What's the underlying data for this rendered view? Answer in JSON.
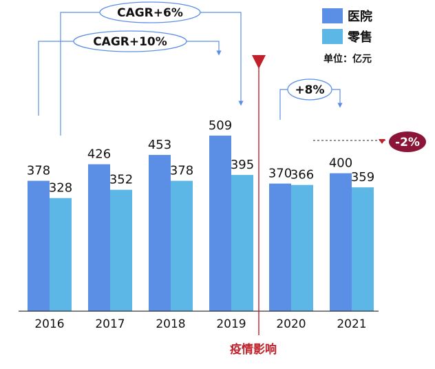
{
  "chart_data": {
    "type": "bar",
    "categories": [
      "2016",
      "2017",
      "2018",
      "2019",
      "2020",
      "2021"
    ],
    "series": [
      {
        "name": "医院",
        "color": "#5B8FE6",
        "values": [
          378,
          426,
          453,
          509,
          370,
          400
        ]
      },
      {
        "name": "零售",
        "color": "#5CB7E6",
        "values": [
          328,
          352,
          378,
          395,
          366,
          359
        ]
      }
    ],
    "unit_label": "单位：亿元",
    "ylim": [
      0,
      560
    ],
    "annotations": {
      "cagr_retail": "CAGR+6%",
      "cagr_hospital": "CAGR+10%",
      "hospital_growth": "+8%",
      "retail_change": "-2%",
      "event_label": "疫情影响"
    },
    "legend_position": "top-right"
  }
}
